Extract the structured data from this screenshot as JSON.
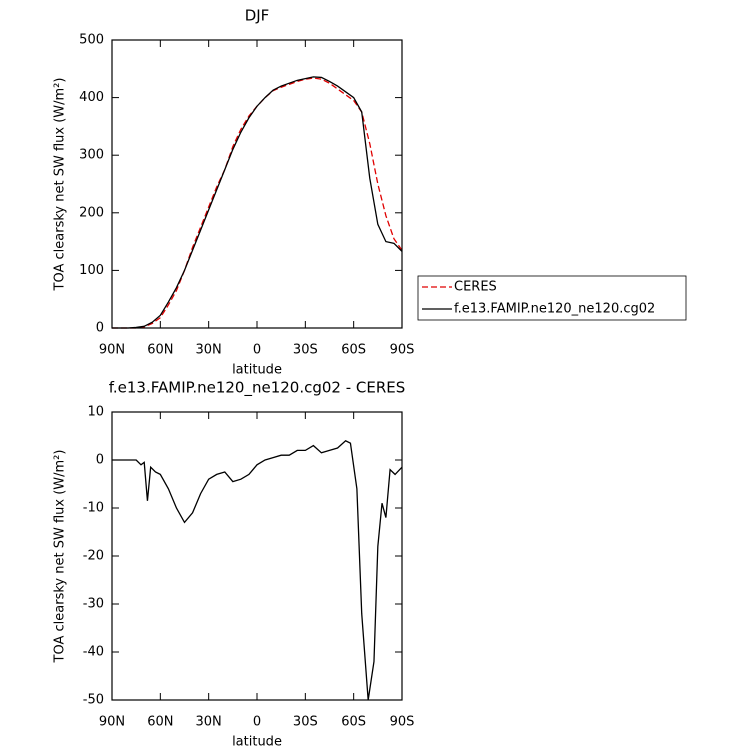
{
  "chart_data": [
    {
      "type": "line",
      "title": "DJF",
      "x_label": "latitude",
      "y_label": "TOA clearsky net SW flux (W/m²)",
      "x": [
        90,
        85,
        80,
        75,
        70,
        65,
        60,
        55,
        50,
        45,
        40,
        35,
        30,
        25,
        20,
        15,
        10,
        5,
        0,
        -5,
        -10,
        -15,
        -20,
        -25,
        -30,
        -35,
        -40,
        -45,
        -50,
        -55,
        -60,
        -65,
        -70,
        -75,
        -80,
        -85,
        -90
      ],
      "series": [
        {
          "name": "CERES",
          "color": "#e00000",
          "style": "dashed",
          "values": [
            0,
            0,
            0,
            0,
            2,
            8,
            18,
            40,
            65,
            100,
            140,
            175,
            210,
            245,
            275,
            315,
            345,
            368,
            385,
            400,
            412,
            418,
            423,
            428,
            432,
            434,
            432,
            425,
            415,
            405,
            395,
            375,
            320,
            250,
            195,
            155,
            135
          ]
        },
        {
          "name": "f.e13.FAMIP.ne120_ne120.cg02",
          "color": "#000000",
          "style": "solid",
          "values": [
            0,
            0,
            0,
            1,
            3,
            10,
            22,
            45,
            70,
            100,
            135,
            170,
            205,
            240,
            275,
            310,
            340,
            365,
            385,
            400,
            413,
            420,
            425,
            430,
            433,
            436,
            435,
            428,
            420,
            410,
            400,
            375,
            260,
            180,
            150,
            147,
            133
          ]
        }
      ],
      "xlim": [
        90,
        -90
      ],
      "ylim": [
        0,
        500
      ],
      "xticks": [
        {
          "value": 90,
          "label": "90N"
        },
        {
          "value": 60,
          "label": "60N"
        },
        {
          "value": 30,
          "label": "30N"
        },
        0,
        {
          "value": -30,
          "label": "30S"
        },
        {
          "value": -60,
          "label": "60S"
        },
        {
          "value": -90,
          "label": "90S"
        }
      ],
      "yticks": [
        0,
        100,
        200,
        300,
        400,
        500
      ],
      "legend": "right"
    },
    {
      "type": "line",
      "title": "f.e13.FAMIP.ne120_ne120.cg02 - CERES",
      "x_label": "latitude",
      "y_label": "TOA clearsky net SW flux (W/m²)",
      "x": [
        90,
        85,
        80,
        75,
        72,
        70,
        68,
        66,
        63,
        60,
        55,
        50,
        45,
        40,
        35,
        30,
        25,
        20,
        15,
        10,
        5,
        0,
        -5,
        -10,
        -15,
        -20,
        -25,
        -30,
        -35,
        -40,
        -45,
        -50,
        -55,
        -58,
        -62,
        -65,
        -69,
        -72.6,
        -75,
        -77.6,
        -80,
        -82.6,
        -85.7,
        -90
      ],
      "series": [
        {
          "color": "#000000",
          "style": "solid",
          "values": [
            0,
            0,
            0,
            0,
            -1,
            -0.5,
            -8.5,
            -1.5,
            -2.5,
            -3,
            -6,
            -10,
            -13,
            -11,
            -7,
            -4,
            -3,
            -2.5,
            -4.5,
            -4,
            -3,
            -1,
            0,
            0.5,
            1,
            1,
            2,
            2,
            3,
            1.5,
            2,
            2.5,
            4,
            3.5,
            -6,
            -32,
            -50,
            -42,
            -18,
            -9,
            -12,
            -2,
            -3,
            -1.5
          ]
        }
      ],
      "xlim": [
        90,
        -90
      ],
      "ylim": [
        -50,
        10
      ],
      "xticks": [
        {
          "value": 90,
          "label": "90N"
        },
        {
          "value": 60,
          "label": "60N"
        },
        {
          "value": 30,
          "label": "30N"
        },
        0,
        {
          "value": -30,
          "label": "30S"
        },
        {
          "value": -60,
          "label": "60S"
        },
        {
          "value": -90,
          "label": "90S"
        }
      ],
      "yticks": [
        -50,
        -40,
        -30,
        -20,
        -10,
        0,
        10
      ]
    }
  ]
}
